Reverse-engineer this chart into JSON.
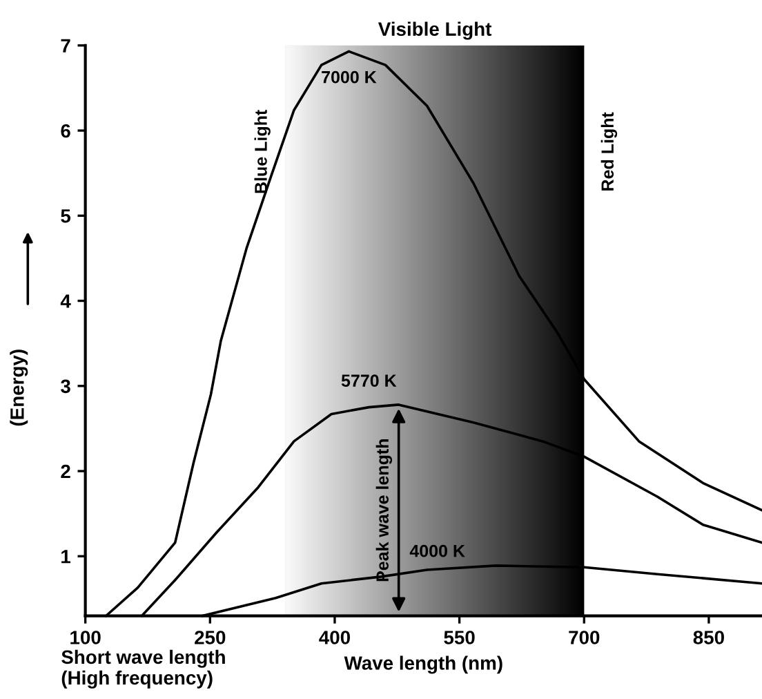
{
  "chart_data": {
    "type": "line",
    "xlabel": "Wave length (nm)",
    "ylabel": "(Energy)",
    "xlim": [
      100,
      914
    ],
    "ylim": [
      0.3,
      7
    ],
    "xticks": [
      100,
      250,
      400,
      550,
      700,
      850
    ],
    "yticks": [
      1,
      2,
      3,
      4,
      5,
      6,
      7
    ],
    "grid": false,
    "marker": "none",
    "line_style": "solid",
    "series": [
      {
        "color": "#000000",
        "x": [
          125,
          163,
          208,
          230,
          251,
          263,
          294,
          324,
          351,
          384,
          417,
          461,
          511,
          567,
          622,
          667,
          700,
          766,
          843,
          914
        ],
        "values": [
          0.3,
          0.63,
          1.16,
          2.09,
          2.9,
          3.53,
          4.62,
          5.48,
          6.24,
          6.77,
          6.93,
          6.77,
          6.29,
          5.38,
          4.29,
          3.64,
          3.08,
          2.35,
          1.86,
          1.54
        ]
      },
      {
        "color": "#000000",
        "x": [
          168,
          208,
          258,
          308,
          351,
          396,
          441,
          477,
          567,
          650,
          700,
          788,
          843,
          914
        ],
        "values": [
          0.3,
          0.72,
          1.28,
          1.81,
          2.35,
          2.67,
          2.75,
          2.78,
          2.57,
          2.35,
          2.17,
          1.7,
          1.37,
          1.16
        ]
      },
      {
        "color": "#000000",
        "x": [
          241,
          329,
          384,
          456,
          511,
          594,
          700,
          788,
          914
        ],
        "values": [
          0.3,
          0.51,
          0.68,
          0.76,
          0.84,
          0.89,
          0.87,
          0.79,
          0.68
        ]
      }
    ],
    "bands": [
      {
        "axis": "x",
        "from": 341,
        "to": 700,
        "label": "Visible Light",
        "color": "#000000"
      }
    ],
    "annotations": [
      {
        "text": "7000 K",
        "x": 417,
        "y": 6.93
      },
      "5770 K",
      "4000 K",
      {
        "text": "Peak wave length",
        "x": 477,
        "y": 2.78
      },
      "Blue Light",
      "Red Light",
      "Short wave length\n(High frequency)"
    ]
  }
}
